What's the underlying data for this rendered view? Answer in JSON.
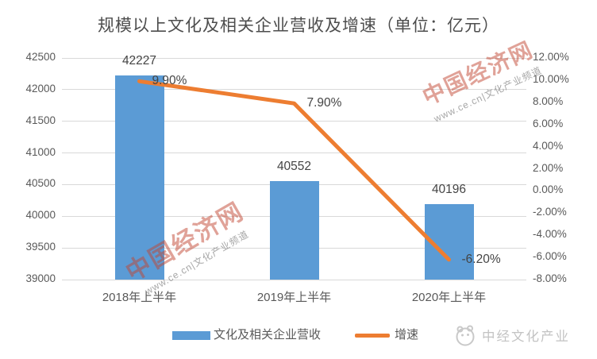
{
  "title": "规模以上文化及相关企业营收及增速（单位：亿元）",
  "chart_data": {
    "type": "bar",
    "title": "规模以上文化及相关企业营收及增速",
    "unit": "亿元",
    "categories": [
      "2018年上半年",
      "2019年上半年",
      "2020年上半年"
    ],
    "series": [
      {
        "name": "文化及相关企业营收",
        "type": "bar",
        "values": [
          42227,
          40552,
          40196
        ],
        "labels": [
          "42227",
          "40552",
          "40196"
        ]
      },
      {
        "name": "增速",
        "type": "line",
        "values": [
          9.9,
          7.9,
          -6.2
        ],
        "labels": [
          "9.90%",
          "7.90%",
          "-6.20%"
        ]
      }
    ],
    "left_axis": {
      "min": 39000,
      "max": 42500,
      "step": 500,
      "tick_labels": [
        "42500",
        "42000",
        "41500",
        "41000",
        "40500",
        "40000",
        "39500",
        "39000"
      ]
    },
    "right_axis": {
      "min": -8,
      "max": 12,
      "step": 2,
      "tick_labels": [
        "12.00%",
        "10.00%",
        "8.00%",
        "6.00%",
        "4.00%",
        "2.00%",
        "0.00%",
        "-2.00%",
        "-4.00%",
        "-6.00%",
        "-8.00%"
      ]
    },
    "grid": true,
    "legend_position": "bottom"
  },
  "colors": {
    "bar": "#5B9BD5",
    "line": "#ED7D31",
    "grid": "#D9D9D9",
    "axis_text": "#595959",
    "watermark_red": "#C14632",
    "logo_gray": "#C3C3C3"
  },
  "legend": {
    "bar_label": "文化及相关企业营收",
    "line_label": "增速"
  },
  "branding": {
    "logo_text": "中经文化产业"
  },
  "watermarks": {
    "main": "中国经济网",
    "sub": "www.ce.cn|文化产业频道"
  }
}
